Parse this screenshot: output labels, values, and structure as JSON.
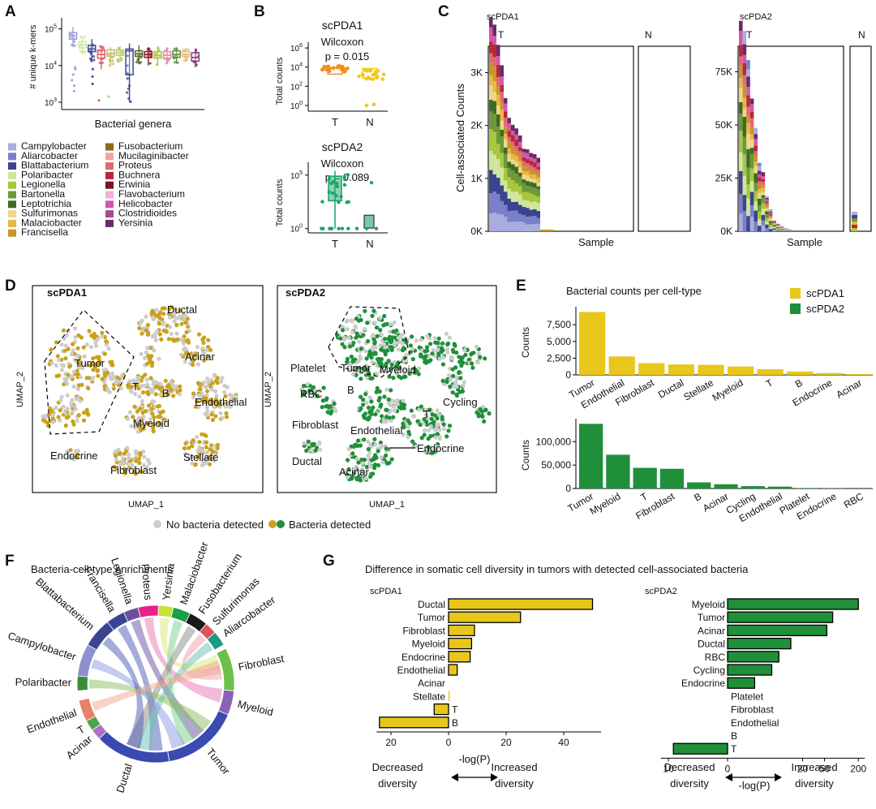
{
  "panels": {
    "A": {
      "letter": "A",
      "ylabel": "# unique k-mers",
      "xlabel": "Bacterial genera",
      "yticks": [
        {
          "label": "10",
          "exp": "5",
          "v": 5
        },
        {
          "label": "10",
          "exp": "4",
          "v": 4
        },
        {
          "label": "10",
          "exp": "3",
          "v": 3
        }
      ],
      "boxes": [
        {
          "q1": 4.72,
          "med": 4.82,
          "q3": 4.9,
          "lo": 4.5,
          "hi": 5.05,
          "color": "#9aa0d8"
        },
        {
          "q1": 4.48,
          "med": 4.57,
          "q3": 4.65,
          "lo": 4.3,
          "hi": 4.8,
          "color": "#cfe69c"
        },
        {
          "q1": 4.38,
          "med": 4.45,
          "q3": 4.55,
          "lo": 4.1,
          "hi": 4.72,
          "color": "#3b4490"
        },
        {
          "q1": 4.2,
          "med": 4.3,
          "q3": 4.42,
          "lo": 3.9,
          "hi": 4.55,
          "color": "#e05a6a"
        },
        {
          "q1": 4.25,
          "med": 4.32,
          "q3": 4.43,
          "lo": 4.0,
          "hi": 4.5,
          "color": "#c8b86a"
        },
        {
          "q1": 4.28,
          "med": 4.35,
          "q3": 4.42,
          "lo": 4.1,
          "hi": 4.52,
          "color": "#b3cc66"
        },
        {
          "q1": 3.75,
          "med": 4.4,
          "q3": 4.45,
          "lo": 3.0,
          "hi": 4.6,
          "color": "#3b4490"
        },
        {
          "q1": 4.25,
          "med": 4.32,
          "q3": 4.4,
          "lo": 4.05,
          "hi": 4.55,
          "color": "#556b2f"
        },
        {
          "q1": 4.22,
          "med": 4.3,
          "q3": 4.38,
          "lo": 4.0,
          "hi": 4.5,
          "color": "#8b1a2b"
        },
        {
          "q1": 4.2,
          "med": 4.28,
          "q3": 4.38,
          "lo": 4.0,
          "hi": 4.5,
          "color": "#a8c63e"
        },
        {
          "q1": 4.2,
          "med": 4.28,
          "q3": 4.38,
          "lo": 4.05,
          "hi": 4.48,
          "color": "#e38aa0"
        },
        {
          "q1": 4.22,
          "med": 4.3,
          "q3": 4.4,
          "lo": 4.05,
          "hi": 4.5,
          "color": "#5f8f3a"
        },
        {
          "q1": 4.25,
          "med": 4.3,
          "q3": 4.38,
          "lo": 4.1,
          "hi": 4.48,
          "color": "#e6c07a"
        },
        {
          "q1": 4.12,
          "med": 4.22,
          "q3": 4.35,
          "lo": 3.95,
          "hi": 4.45,
          "color": "#8a3a7a"
        }
      ],
      "legend_col1": [
        {
          "label": "Campylobacter",
          "color": "#a9acdf"
        },
        {
          "label": "Aliarcobacter",
          "color": "#7a80c8"
        },
        {
          "label": "Blattabacterium",
          "color": "#3b4490"
        },
        {
          "label": "Polaribacter",
          "color": "#cfe69c"
        },
        {
          "label": "Legionella",
          "color": "#a8c63e"
        },
        {
          "label": "Bartonella",
          "color": "#6c9a3a"
        },
        {
          "label": "Leptotrichia",
          "color": "#3f6b24"
        },
        {
          "label": "Sulfurimonas",
          "color": "#efd68a"
        },
        {
          "label": "Malaciobacter",
          "color": "#e7b844"
        },
        {
          "label": "Francisella",
          "color": "#c8952a"
        }
      ],
      "legend_col2": [
        {
          "label": "Fusobacterium",
          "color": "#8a6a1c"
        },
        {
          "label": "Mucilaginibacter",
          "color": "#f2a3a8"
        },
        {
          "label": "Proteus",
          "color": "#e06a74"
        },
        {
          "label": "Buchnera",
          "color": "#b8283a"
        },
        {
          "label": "Erwinia",
          "color": "#7a1424"
        },
        {
          "label": "Flavobacterium",
          "color": "#f0b0d8"
        },
        {
          "label": "Helicobacter",
          "color": "#d05aa8"
        },
        {
          "label": "Clostridioides",
          "color": "#a84a90"
        },
        {
          "label": "Yersinia",
          "color": "#6a2a6a"
        }
      ]
    },
    "B": {
      "letter": "B",
      "top": {
        "title": "scPDA1",
        "stat": "Wilcoxon",
        "p": "p = 0.015",
        "ylabel": "Total counts",
        "groups": [
          "T",
          "N"
        ],
        "color_T": "#f28c1c",
        "color_N": "#f2c81c",
        "yticks": [
          {
            "label": "10",
            "exp": "6",
            "v": 6
          },
          {
            "label": "10",
            "exp": "4",
            "v": 4
          },
          {
            "label": "10",
            "exp": "2",
            "v": 2
          },
          {
            "label": "10",
            "exp": "0",
            "v": 0
          }
        ]
      },
      "bottom": {
        "title": "scPDA2",
        "stat": "Wilcoxon",
        "p": "p = 0.089",
        "ylabel": "Total counts",
        "groups": [
          "T",
          "N"
        ],
        "color": "#1aa36a",
        "yticks": [
          {
            "label": "10",
            "exp": "5",
            "v": 5
          },
          {
            "label": "10",
            "exp": "0",
            "v": 0
          }
        ]
      }
    },
    "C": {
      "letter": "C",
      "ylabel": "Cell-associated Counts",
      "left": {
        "title": "scPDA1",
        "groups": [
          "T",
          "N"
        ],
        "xlabel": "Sample",
        "yticks": [
          "3K",
          "2K",
          "1K",
          "0K"
        ],
        "ymax": 3500
      },
      "right": {
        "title": "scPDA2",
        "groups": [
          "T",
          "N"
        ],
        "xlabel": "Sample",
        "yticks": [
          "75K",
          "50K",
          "25K",
          "0K"
        ],
        "ymax": 87000
      }
    },
    "D": {
      "letter": "D",
      "left": {
        "title": "scPDA1",
        "xlabel": "UMAP_1",
        "ylabel": "UMAP_2",
        "labels": [
          "Ductal",
          "Acinar",
          "Tumor",
          "T",
          "B",
          "Endothelial",
          "Myeloid",
          "Endocrine",
          "Fibroblast",
          "Stellate"
        ]
      },
      "right": {
        "title": "scPDA2",
        "xlabel": "UMAP_1",
        "ylabel": "UMAP_2",
        "labels": [
          "Platelet",
          "Tumor",
          "Myeloid",
          "RBC",
          "B",
          "Cycling",
          "T",
          "Fibroblast",
          "Endothelial",
          "Endocrine",
          "Ductal",
          "Acinar"
        ]
      },
      "legend": {
        "none": "No bacteria detected",
        "detected": "Bacteria detected",
        "grey": "#cccccc",
        "gold": "#c9a21c",
        "green": "#1f8f3a"
      }
    },
    "E": {
      "letter": "E",
      "title": "Bacterial counts per cell-type",
      "legend": [
        {
          "label": "scPDA1",
          "color": "#e8c61a"
        },
        {
          "label": "scPDA2",
          "color": "#1f8f3a"
        }
      ]
    },
    "F": {
      "letter": "F",
      "title": "Bacteria-cell-type enrichments",
      "segments": [
        {
          "label": "Francisella",
          "color": "#3b4490",
          "a0": -38,
          "a1": -24
        },
        {
          "label": "Legionella",
          "color": "#6a50a0",
          "a0": -24,
          "a1": -13
        },
        {
          "label": "Proteus",
          "color": "#e8208a",
          "a0": -13,
          "a1": 2
        },
        {
          "label": "Yersinia",
          "color": "#c8e03a",
          "a0": 2,
          "a1": 13
        },
        {
          "label": "Malaciobacter",
          "color": "#1aa04a",
          "a0": 13,
          "a1": 26
        },
        {
          "label": "Fusobacterium",
          "color": "#1a1a1a",
          "a0": 26,
          "a1": 40
        },
        {
          "label": "Sulfurimonas",
          "color": "#e05060",
          "a0": 40,
          "a1": 49
        },
        {
          "label": "Aliarcobacter",
          "color": "#1a9a80",
          "a0": 49,
          "a1": 60
        },
        {
          "label": "Fibroblast",
          "color": "#6cc04a",
          "a0": 63,
          "a1": 95
        },
        {
          "label": "Myeloid",
          "color": "#8a60b8",
          "a0": 95,
          "a1": 113
        },
        {
          "label": "Tumor",
          "color": "#3b4ab0",
          "a0": 113,
          "a1": 170
        },
        {
          "label": "Ductal",
          "color": "#3b4ab0",
          "a0": 170,
          "a1": 226
        },
        {
          "label": "Acinar",
          "color": "#b070c8",
          "a0": 226,
          "a1": 234
        },
        {
          "label": "T",
          "color": "#4aa84a",
          "a0": 234,
          "a1": 242
        },
        {
          "label": "Endothelial",
          "color": "#e8806a",
          "a0": 242,
          "a1": 258
        },
        {
          "label": "Polaribacter",
          "color": "#3a8a3a",
          "a0": 265,
          "a1": 276
        },
        {
          "label": "Campylobacter",
          "color": "#8a90d0",
          "a0": 276,
          "a1": 300
        },
        {
          "label": "Blattabacterium",
          "color": "#3b4490",
          "a0": 300,
          "a1": 322
        }
      ],
      "ribbons": [
        {
          "a": -31,
          "b": 180,
          "color": "#4a5ab8"
        },
        {
          "a": -18,
          "b": 140,
          "color": "#6a50a0"
        },
        {
          "a": -6,
          "b": 100,
          "color": "#e878b0"
        },
        {
          "a": 8,
          "b": 70,
          "color": "#d8e878"
        },
        {
          "a": 20,
          "b": 150,
          "color": "#7ad08a"
        },
        {
          "a": 33,
          "b": 200,
          "color": "#8a8a8a"
        },
        {
          "a": 45,
          "b": 80,
          "color": "#f0a0a8"
        },
        {
          "a": 55,
          "b": 190,
          "color": "#6ac0b0"
        },
        {
          "a": 270,
          "b": 130,
          "color": "#8ac060"
        },
        {
          "a": 288,
          "b": 160,
          "color": "#8a9ae0"
        },
        {
          "a": 311,
          "b": 200,
          "color": "#4a5ab8"
        },
        {
          "a": 250,
          "b": 75,
          "color": "#f0a890"
        }
      ]
    },
    "G": {
      "letter": "G",
      "title": "Difference in somatic cell diversity in tumors with detected cell-associated bacteria",
      "decreased": "Decreased diversity",
      "increased": "Increased diversity",
      "decreased_l1": "Decreased",
      "decreased_l2": "diversity",
      "increased_l1": "Increased",
      "increased_l2": "diversity"
    }
  },
  "chart_data": [
    {
      "panel": "E-top",
      "type": "bar",
      "title": "Bacterial counts per cell-type",
      "series_name": "scPDA1",
      "categories": [
        "Tumor",
        "Endothelial",
        "Fibroblast",
        "Ductal",
        "Stellate",
        "Myeloid",
        "T",
        "B",
        "Endocrine",
        "Acinar"
      ],
      "values": [
        9400,
        2750,
        1750,
        1550,
        1500,
        1250,
        850,
        500,
        280,
        120
      ],
      "ylabel": "Counts",
      "yticks": [
        0,
        2500,
        5000,
        7500
      ],
      "ytick_labels": [
        "0",
        "2,500",
        "5,000",
        "7,500"
      ],
      "ylim": [
        0,
        9700
      ],
      "color": "#e8c61a"
    },
    {
      "panel": "E-bottom",
      "type": "bar",
      "series_name": "scPDA2",
      "categories": [
        "Tumor",
        "Myeloid",
        "T",
        "Fibroblast",
        "B",
        "Acinar",
        "Cycling",
        "Endothelial",
        "Platelet",
        "Endocrine",
        "RBC"
      ],
      "values": [
        138000,
        72000,
        44000,
        42000,
        13000,
        9000,
        5000,
        4000,
        1000,
        700,
        300
      ],
      "ylabel": "Counts",
      "yticks": [
        0,
        50000,
        100000
      ],
      "ytick_labels": [
        "0",
        "50,000",
        "100,000"
      ],
      "ylim": [
        0,
        142000
      ],
      "color": "#1f8f3a"
    },
    {
      "panel": "G-left",
      "type": "bar",
      "orientation": "horizontal",
      "title": "scPDA1",
      "categories": [
        "Ductal",
        "Tumor",
        "Fibroblast",
        "Myeloid",
        "Endocrine",
        "Endothelial",
        "Acinar",
        "Stellate",
        "T",
        "B"
      ],
      "values": [
        50,
        25,
        9,
        8,
        7.5,
        3,
        0,
        0.3,
        -5,
        -24
      ],
      "xlabel": "-log(P)",
      "xticks": [
        -20,
        0,
        20,
        40
      ],
      "xtick_labels": [
        "20",
        "0",
        "20",
        "40"
      ],
      "xlim": [
        -25,
        53
      ],
      "color": "#e8c61a"
    },
    {
      "panel": "G-right",
      "type": "bar",
      "orientation": "horizontal",
      "title": "scPDA2",
      "categories": [
        "Myeloid",
        "Tumor",
        "Acinar",
        "Ductal",
        "RBC",
        "Cycling",
        "Endocrine",
        "Platelet",
        "Fibroblast",
        "Endothelial",
        "B",
        "T"
      ],
      "values": [
        200,
        70,
        55,
        12,
        7,
        5,
        2,
        0,
        0,
        0,
        0,
        -8
      ],
      "xlabel": "-log(P)",
      "xscale": "pseudo-log",
      "xticks": [
        -10,
        0,
        20,
        50,
        200
      ],
      "xtick_labels": [
        "10",
        "0",
        "20",
        "50",
        "200"
      ],
      "color": "#1f8f3a"
    }
  ]
}
